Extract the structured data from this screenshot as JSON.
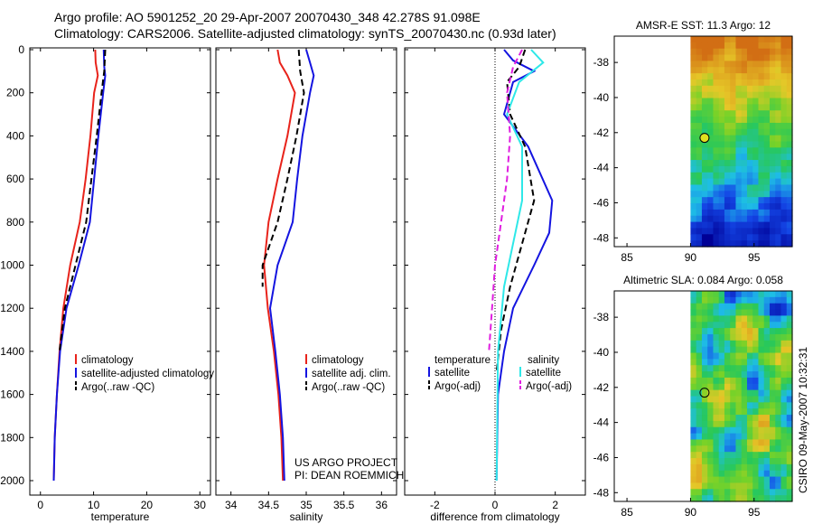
{
  "header": {
    "line1": "Argo profile: AO 5901252_20 29-Apr-2007 20070430_348 42.278S 91.098E",
    "line2": "Climatology: CARS2006. Satellite-adjusted climatology: synTS_20070430.nc (0.93d later)"
  },
  "credits": {
    "project": "US ARGO PROJECT",
    "pi": "PI: DEAN ROEMMICH",
    "stamp": "CSIRO 09-May-2007 10:32:31"
  },
  "colors": {
    "red": "#e8231b",
    "blue": "#1414e0",
    "cyan": "#2ee8e8",
    "magenta": "#e01ee0",
    "black": "#000000"
  },
  "chart_data": [
    {
      "type": "line",
      "name": "temperature-panel",
      "xlabel": "temperature",
      "xlim": [
        -2,
        32
      ],
      "ylim": [
        2000,
        0
      ],
      "xticks": [
        0,
        10,
        20,
        30
      ],
      "yticks": [
        0,
        200,
        400,
        600,
        800,
        1000,
        1200,
        1400,
        1600,
        1800,
        2000
      ],
      "legend": [
        "climatology",
        "satellite-adjusted climatology",
        "Argo(..raw -QC)"
      ],
      "series": [
        {
          "name": "climatology",
          "color": "red",
          "dash": "",
          "points": [
            [
              10.3,
              0
            ],
            [
              10.4,
              60
            ],
            [
              10.8,
              120
            ],
            [
              10.1,
              200
            ],
            [
              9.4,
              400
            ],
            [
              8.5,
              600
            ],
            [
              7.4,
              800
            ],
            [
              5.6,
              1000
            ],
            [
              4.3,
              1200
            ],
            [
              3.6,
              1400
            ],
            [
              3.1,
              1600
            ],
            [
              2.7,
              1800
            ],
            [
              2.5,
              2000
            ]
          ]
        },
        {
          "name": "satellite-adjusted climatology",
          "color": "blue",
          "dash": "",
          "points": [
            [
              11.9,
              0
            ],
            [
              12.0,
              80
            ],
            [
              12.2,
              120
            ],
            [
              11.8,
              200
            ],
            [
              10.9,
              400
            ],
            [
              10.1,
              600
            ],
            [
              9.3,
              800
            ],
            [
              7.2,
              1000
            ],
            [
              4.9,
              1200
            ],
            [
              3.7,
              1400
            ],
            [
              3.1,
              1600
            ],
            [
              2.7,
              1800
            ],
            [
              2.5,
              2000
            ]
          ]
        },
        {
          "name": "Argo(..raw -QC)",
          "color": "black",
          "dash": "7,4",
          "points": [
            [
              12.2,
              0
            ],
            [
              12.0,
              100
            ],
            [
              11.5,
              200
            ],
            [
              10.6,
              400
            ],
            [
              9.6,
              600
            ],
            [
              8.6,
              800
            ],
            [
              6.6,
              1000
            ],
            [
              4.6,
              1200
            ],
            [
              3.6,
              1400
            ]
          ]
        }
      ]
    },
    {
      "type": "line",
      "name": "salinity-panel",
      "xlabel": "salinity",
      "xlim": [
        33.8,
        36.2
      ],
      "ylim": [
        2000,
        0
      ],
      "xticks": [
        34,
        34.5,
        35,
        35.5,
        36
      ],
      "yticks": [
        0,
        200,
        400,
        600,
        800,
        1000,
        1200,
        1400,
        1600,
        1800,
        2000
      ],
      "legend": [
        "climatology",
        "satellite adj. clim.",
        "Argo(..raw -QC)"
      ],
      "series": [
        {
          "name": "climatology",
          "color": "red",
          "dash": "",
          "points": [
            [
              34.62,
              0
            ],
            [
              34.65,
              60
            ],
            [
              34.75,
              120
            ],
            [
              34.85,
              200
            ],
            [
              34.75,
              400
            ],
            [
              34.62,
              600
            ],
            [
              34.5,
              800
            ],
            [
              34.44,
              1000
            ],
            [
              34.49,
              1200
            ],
            [
              34.57,
              1400
            ],
            [
              34.63,
              1600
            ],
            [
              34.67,
              1800
            ],
            [
              34.69,
              2000
            ]
          ]
        },
        {
          "name": "satellite adj. clim.",
          "color": "blue",
          "dash": "",
          "points": [
            [
              35.0,
              0
            ],
            [
              35.05,
              60
            ],
            [
              35.1,
              120
            ],
            [
              35.05,
              200
            ],
            [
              34.95,
              400
            ],
            [
              34.88,
              600
            ],
            [
              34.82,
              800
            ],
            [
              34.62,
              1000
            ],
            [
              34.52,
              1200
            ],
            [
              34.59,
              1400
            ],
            [
              34.65,
              1600
            ],
            [
              34.69,
              1800
            ],
            [
              34.71,
              2000
            ]
          ]
        },
        {
          "name": "Argo(..raw -QC)",
          "color": "black",
          "dash": "7,4",
          "points": [
            [
              34.9,
              0
            ],
            [
              34.92,
              100
            ],
            [
              34.97,
              200
            ],
            [
              34.87,
              400
            ],
            [
              34.75,
              600
            ],
            [
              34.62,
              800
            ],
            [
              34.42,
              1000
            ],
            [
              34.42,
              1100
            ]
          ]
        }
      ]
    },
    {
      "type": "line",
      "name": "difference-panel",
      "xlabel": "difference from climatology",
      "xlim": [
        -3,
        3
      ],
      "ylim": [
        2000,
        0
      ],
      "xticks": [
        -2,
        0,
        2
      ],
      "yticks": [
        0,
        200,
        400,
        600,
        800,
        1000,
        1200,
        1400,
        1600,
        1800,
        2000
      ],
      "legend_headers": [
        "temperature",
        "salinity"
      ],
      "legend": [
        "satellite",
        "Argo(-adj)",
        "satellite",
        "Argo(-adj)"
      ],
      "series": [
        {
          "name": "temperature satellite",
          "color": "blue",
          "dash": "",
          "points": [
            [
              0.3,
              0
            ],
            [
              0.6,
              50
            ],
            [
              1.3,
              100
            ],
            [
              0.6,
              150
            ],
            [
              0.3,
              300
            ],
            [
              1.1,
              450
            ],
            [
              1.9,
              700
            ],
            [
              1.8,
              850
            ],
            [
              1.3,
              1000
            ],
            [
              0.6,
              1200
            ],
            [
              0.3,
              1400
            ],
            [
              0.1,
              1600
            ],
            [
              0.05,
              2000
            ]
          ]
        },
        {
          "name": "temperature Argo(-adj)",
          "color": "black",
          "dash": "7,4",
          "points": [
            [
              1.0,
              0
            ],
            [
              0.8,
              80
            ],
            [
              0.4,
              150
            ],
            [
              0.5,
              300
            ],
            [
              1.0,
              450
            ],
            [
              1.3,
              700
            ],
            [
              0.9,
              900
            ],
            [
              0.5,
              1100
            ],
            [
              0.2,
              1300
            ],
            [
              0.05,
              1500
            ]
          ]
        },
        {
          "name": "salinity satellite",
          "color": "cyan",
          "dash": "",
          "points": [
            [
              1.2,
              0
            ],
            [
              1.6,
              60
            ],
            [
              0.8,
              150
            ],
            [
              0.4,
              300
            ],
            [
              0.9,
              450
            ],
            [
              0.9,
              700
            ],
            [
              0.6,
              900
            ],
            [
              0.3,
              1100
            ],
            [
              0.1,
              1400
            ],
            [
              0.05,
              2000
            ]
          ]
        },
        {
          "name": "salinity Argo(-adj)",
          "color": "magenta",
          "dash": "7,4",
          "points": [
            [
              0.9,
              0
            ],
            [
              0.6,
              80
            ],
            [
              0.4,
              200
            ],
            [
              0.5,
              400
            ],
            [
              0.4,
              600
            ],
            [
              0.2,
              800
            ],
            [
              0.0,
              1000
            ],
            [
              -0.1,
              1200
            ],
            [
              -0.2,
              1400
            ]
          ]
        }
      ]
    },
    {
      "type": "heatmap",
      "name": "sst-map",
      "title": "AMSR-E SST: 11.3  Argo: 12",
      "xlim": [
        84,
        98
      ],
      "ylim": [
        -48.5,
        -36.5
      ],
      "xticks": [
        85,
        90,
        95
      ],
      "yticks": [
        -38,
        -40,
        -42,
        -44,
        -46,
        -48
      ],
      "data_lon_start": 90,
      "marker": {
        "lon": 91.1,
        "lat": -42.3
      }
    },
    {
      "type": "heatmap",
      "name": "sla-map",
      "title": "Altimetric SLA: 0.084  Argo: 0.058",
      "xlim": [
        84,
        98
      ],
      "ylim": [
        -48.5,
        -36.5
      ],
      "xticks": [
        85,
        90,
        95
      ],
      "yticks": [
        -38,
        -40,
        -42,
        -44,
        -46,
        -48
      ],
      "data_lon_start": 90,
      "marker": {
        "lon": 91.1,
        "lat": -42.3
      }
    }
  ]
}
